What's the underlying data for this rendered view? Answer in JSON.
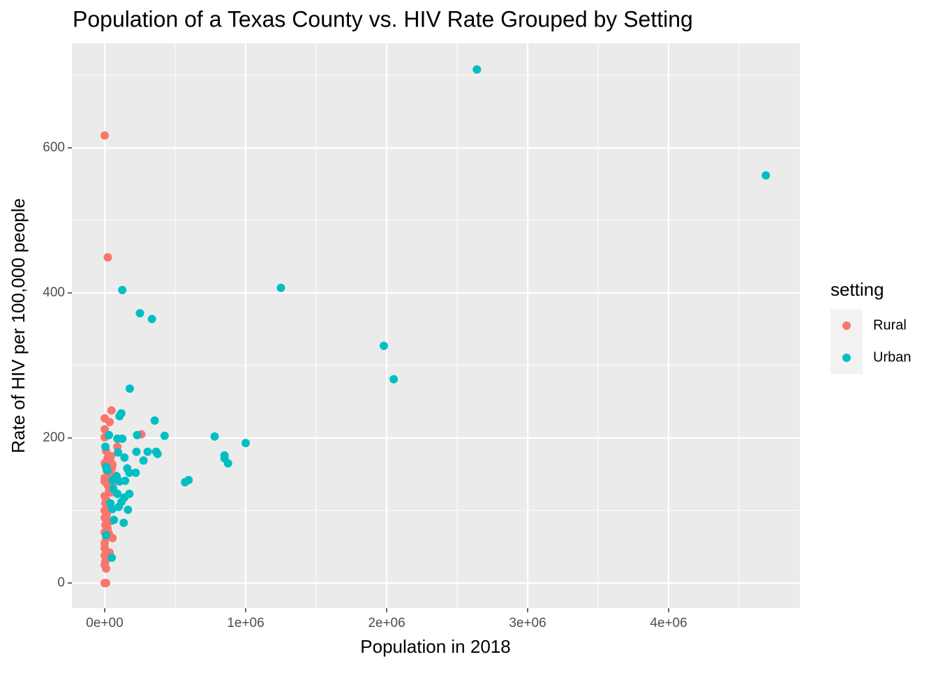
{
  "chart_data": {
    "type": "scatter",
    "title": "Population of a Texas County vs. HIV Rate Grouped by Setting",
    "x_label": "Population in 2018",
    "y_label": "Rate of HIV per 100,000 people",
    "legend_title": "setting",
    "legend_position": "right",
    "grid": true,
    "xlim": [
      -232673,
      4930693
    ],
    "ylim": [
      -34.6,
      744.2
    ],
    "xticks": [
      {
        "value": 0,
        "label": "0e+00"
      },
      {
        "value": 1000000,
        "label": "1e+06"
      },
      {
        "value": 2000000,
        "label": "2e+06"
      },
      {
        "value": 3000000,
        "label": "3e+06"
      },
      {
        "value": 4000000,
        "label": "4e+06"
      }
    ],
    "yticks": [
      0,
      200,
      400,
      600
    ],
    "series": [
      {
        "name": "Rural",
        "color": "#F8766D",
        "x": [
          0,
          22000,
          48000,
          0,
          35000,
          0,
          0,
          260000,
          90000,
          10000,
          45000,
          20000,
          40000,
          55000,
          50000,
          35000,
          0,
          80000,
          0,
          20000,
          60000,
          30000,
          45000,
          0,
          10000,
          5000,
          25000,
          0,
          15000,
          0,
          40000,
          5000,
          20000,
          0,
          30000,
          55000,
          10000,
          0,
          0,
          35000,
          0,
          5000,
          0,
          10000,
          0,
          10000,
          0,
          15000,
          70000,
          30000
        ],
        "values": [
          617,
          449,
          238,
          227,
          222,
          212,
          201,
          205,
          188,
          182,
          175,
          172,
          168,
          163,
          158,
          150,
          145,
          148,
          140,
          135,
          138,
          128,
          125,
          120,
          115,
          110,
          105,
          100,
          95,
          90,
          85,
          80,
          75,
          70,
          68,
          62,
          62,
          55,
          48,
          42,
          38,
          30,
          25,
          20,
          0,
          0,
          165,
          155,
          145,
          175
        ]
      },
      {
        "name": "Urban",
        "color": "#00BFC4",
        "x": [
          2640000,
          4690000,
          1250000,
          1980000,
          2050000,
          125000,
          250000,
          335000,
          178000,
          118000,
          105000,
          355000,
          425000,
          780000,
          1000000,
          230000,
          125000,
          90000,
          305000,
          365000,
          375000,
          225000,
          850000,
          850000,
          875000,
          140000,
          275000,
          160000,
          570000,
          595000,
          220000,
          175000,
          145000,
          105000,
          55000,
          175000,
          140000,
          120000,
          100000,
          165000,
          55000,
          135000,
          65000,
          90000,
          95000,
          30000,
          5000,
          10000,
          20000,
          60000,
          40000,
          10000,
          50000,
          85000
        ],
        "values": [
          708,
          562,
          407,
          327,
          281,
          404,
          372,
          364,
          268,
          234,
          230,
          224,
          203,
          202,
          193,
          204,
          199,
          199,
          181,
          181,
          178,
          181,
          176,
          172,
          165,
          173,
          169,
          158,
          139,
          142,
          152,
          152,
          141,
          140,
          142,
          123,
          118,
          112,
          105,
          101,
          102,
          83,
          87,
          123,
          180,
          204,
          188,
          160,
          155,
          130,
          110,
          66,
          35,
          147
        ]
      }
    ]
  }
}
